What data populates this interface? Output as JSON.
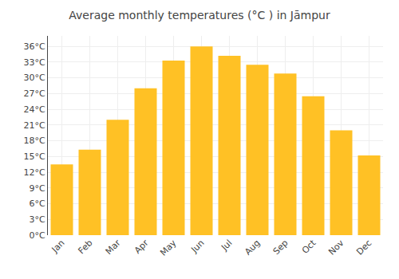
{
  "chart_data": {
    "type": "bar",
    "title": "Average monthly temperatures (°C ) in Jāmpur",
    "categories": [
      "Jan",
      "Feb",
      "Mar",
      "Apr",
      "May",
      "Jun",
      "Jul",
      "Aug",
      "Sep",
      "Oct",
      "Nov",
      "Dec"
    ],
    "values": [
      13.5,
      16.3,
      22.0,
      28.0,
      33.3,
      36.0,
      34.2,
      32.5,
      30.8,
      26.5,
      20.0,
      15.2
    ],
    "color": "#FFC125",
    "ylim": [
      0,
      38
    ],
    "yticks": [
      {
        "value": 0,
        "label": "0°C"
      },
      {
        "value": 3,
        "label": "3°C"
      },
      {
        "value": 6,
        "label": "6°C"
      },
      {
        "value": 9,
        "label": "9°C"
      },
      {
        "value": 12,
        "label": "12°C"
      },
      {
        "value": 15,
        "label": "15°C"
      },
      {
        "value": 18,
        "label": "18°C"
      },
      {
        "value": 21,
        "label": "21°C"
      },
      {
        "value": 24,
        "label": "24°C"
      },
      {
        "value": 27,
        "label": "27°C"
      },
      {
        "value": 30,
        "label": "30°C"
      },
      {
        "value": 33,
        "label": "33°C"
      },
      {
        "value": 36,
        "label": "36°C"
      }
    ],
    "grid": true
  }
}
